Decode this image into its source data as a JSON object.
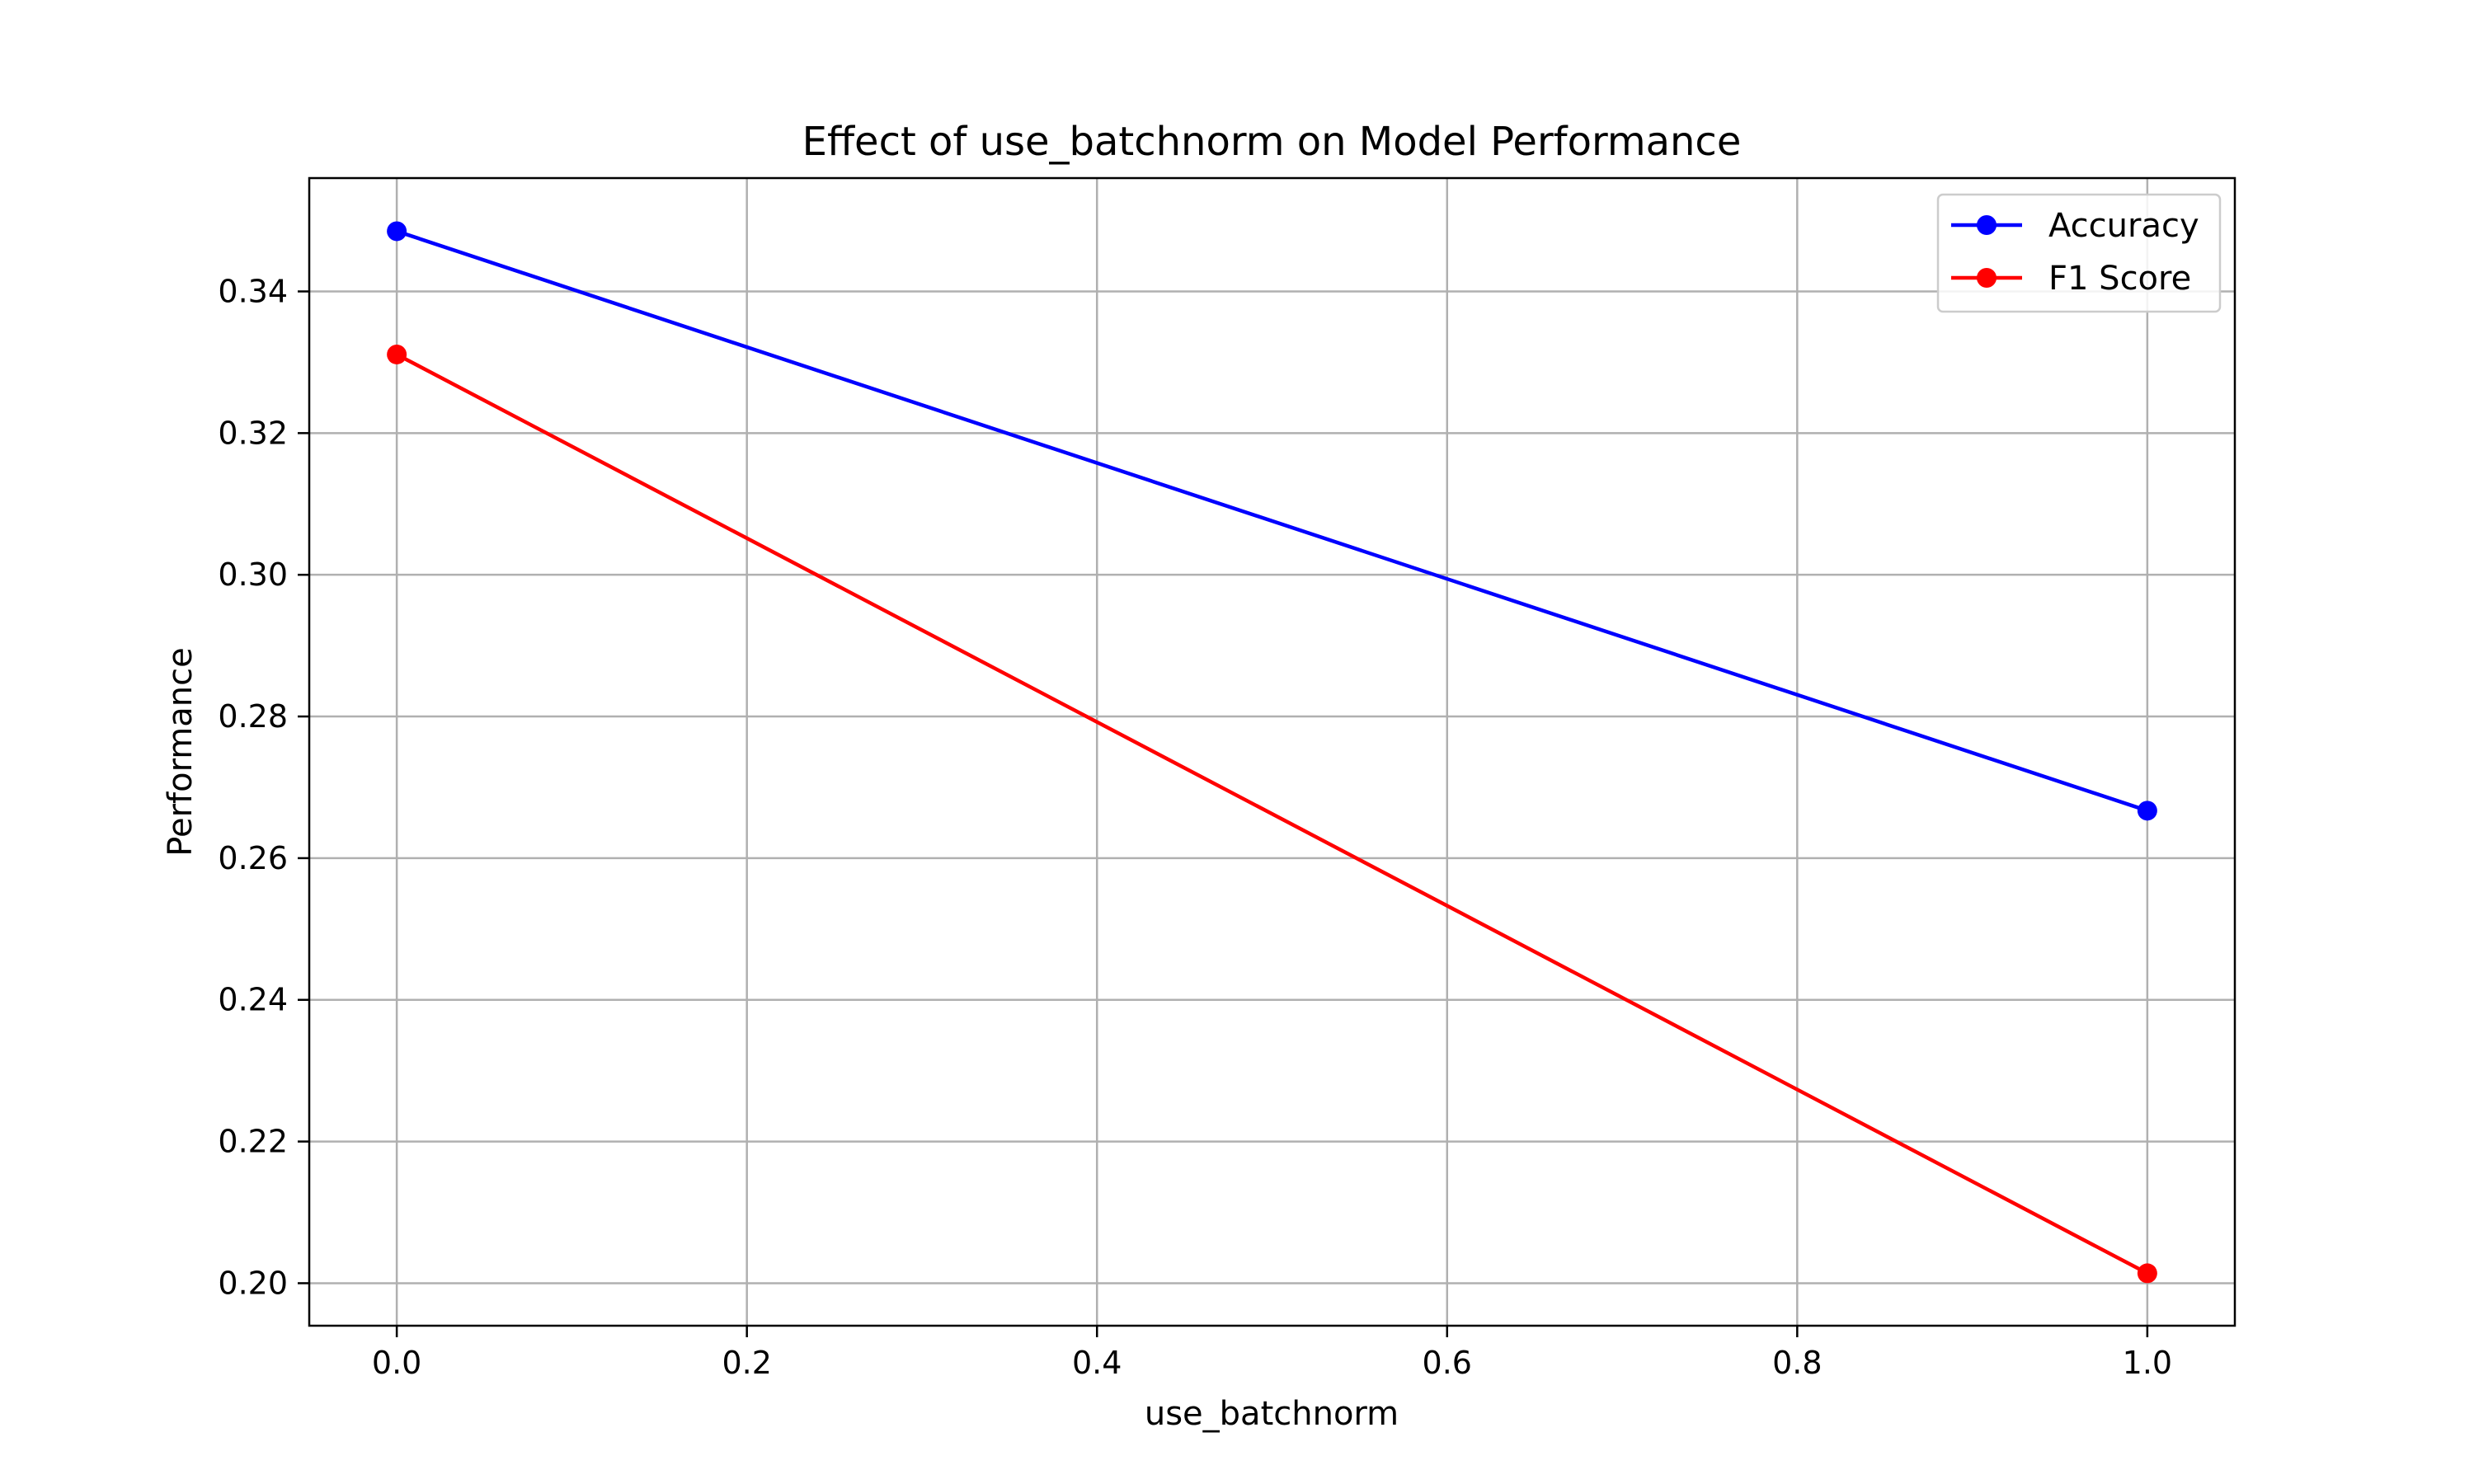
{
  "chart_data": {
    "type": "line",
    "title": "Effect of use_batchnorm on Model Performance",
    "xlabel": "use_batchnorm",
    "ylabel": "Performance",
    "x": [
      0.0,
      1.0
    ],
    "series": [
      {
        "name": "Accuracy",
        "values": [
          0.3485,
          0.2667
        ],
        "color": "#0000ff"
      },
      {
        "name": "F1 Score",
        "values": [
          0.3311,
          0.2014
        ],
        "color": "#ff0000"
      }
    ],
    "xlim": [
      -0.05,
      1.05
    ],
    "ylim": [
      0.194,
      0.356
    ],
    "xticks": [
      "0.0",
      "0.2",
      "0.4",
      "0.6",
      "0.8",
      "1.0"
    ],
    "yticks": [
      "0.20",
      "0.22",
      "0.24",
      "0.26",
      "0.28",
      "0.30",
      "0.32",
      "0.34"
    ],
    "grid": true,
    "legend_position": "top-right",
    "marker": "circle"
  }
}
